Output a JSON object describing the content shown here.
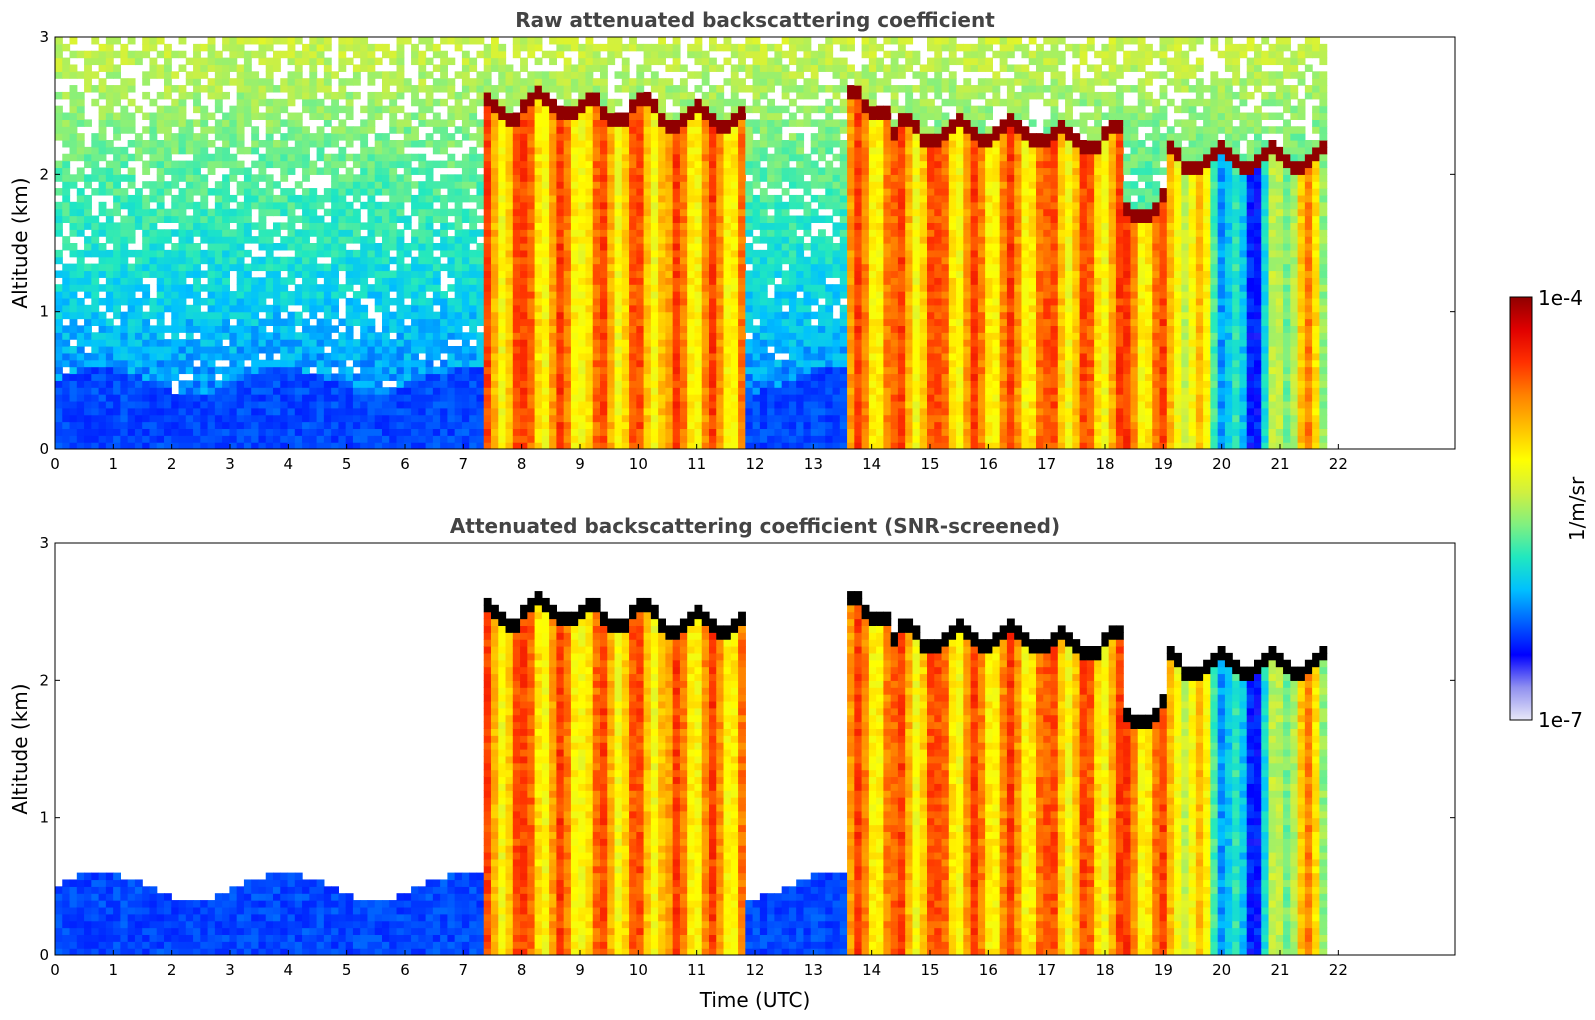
{
  "colorbar": {
    "max_label": "1e-4",
    "min_label": "1e-7",
    "unit_label": "1/m/sr",
    "colormap": [
      "#e8e8f8",
      "#9090f0",
      "#0000ff",
      "#0060ff",
      "#00c0ff",
      "#20e8c0",
      "#80f080",
      "#d0f040",
      "#ffff00",
      "#ffc000",
      "#ff8000",
      "#ff3000",
      "#e00000",
      "#900000"
    ]
  },
  "chart_data": [
    {
      "type": "heatmap",
      "title": "Raw attenuated backscattering coefficient",
      "xlabel": "",
      "ylabel": "Altitude (km)",
      "xlim": [
        0,
        24
      ],
      "ylim": [
        0,
        3
      ],
      "x_ticks": [
        "0",
        "1",
        "2",
        "3",
        "4",
        "5",
        "6",
        "7",
        "8",
        "9",
        "10",
        "11",
        "12",
        "13",
        "14",
        "15",
        "16",
        "17",
        "18",
        "19",
        "20",
        "21",
        "22"
      ],
      "y_ticks": [
        "0",
        "1",
        "2",
        "3"
      ],
      "data_end_hour": 21.8,
      "colorscale": {
        "min": "1e-7",
        "max": "1e-4",
        "unit": "1/m/sr"
      },
      "features": {
        "low_clouds": [
          [
            7.3,
            8.0
          ],
          [
            8.0,
            9.0
          ],
          [
            9.0,
            10.5
          ],
          [
            10.5,
            11.8
          ],
          [
            13.6,
            14.3
          ],
          [
            14.3,
            15.2
          ],
          [
            15.2,
            17.0
          ],
          [
            17.0,
            18.3
          ],
          [
            18.3,
            19.0
          ],
          [
            19.1,
            21.8
          ]
        ],
        "cloud_top_km": [
          2.45,
          2.5,
          2.45,
          2.4,
          2.5,
          2.3,
          2.3,
          2.25,
          1.75,
          2.1
        ],
        "boundary_layer_top_km": 0.6
      }
    },
    {
      "type": "heatmap",
      "title": "Attenuated backscattering coefficient (SNR-screened)",
      "xlabel": "Time (UTC)",
      "ylabel": "Altitude (km)",
      "xlim": [
        0,
        24
      ],
      "ylim": [
        0,
        3
      ],
      "x_ticks": [
        "0",
        "1",
        "2",
        "3",
        "4",
        "5",
        "6",
        "7",
        "8",
        "9",
        "10",
        "11",
        "12",
        "13",
        "14",
        "15",
        "16",
        "17",
        "18",
        "19",
        "20",
        "21",
        "22"
      ],
      "y_ticks": [
        "0",
        "1",
        "2",
        "3"
      ],
      "data_end_hour": 21.8,
      "colorscale": {
        "min": "1e-7",
        "max": "1e-4",
        "unit": "1/m/sr"
      }
    }
  ]
}
